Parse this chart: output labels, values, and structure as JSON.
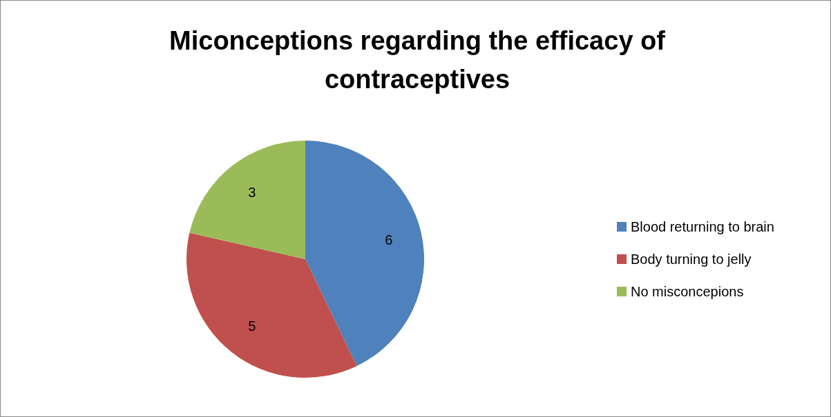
{
  "chart_data": {
    "type": "pie",
    "title": "Miconceptions regarding the efficacy of contraceptives",
    "categories": [
      "Blood returning to brain",
      "Body turning to jelly",
      "No misconcepions"
    ],
    "values": [
      6,
      5,
      3
    ],
    "colors": [
      "#4f81bd",
      "#c0504d",
      "#9bbb59"
    ],
    "data_labels": true,
    "legend": "right"
  }
}
